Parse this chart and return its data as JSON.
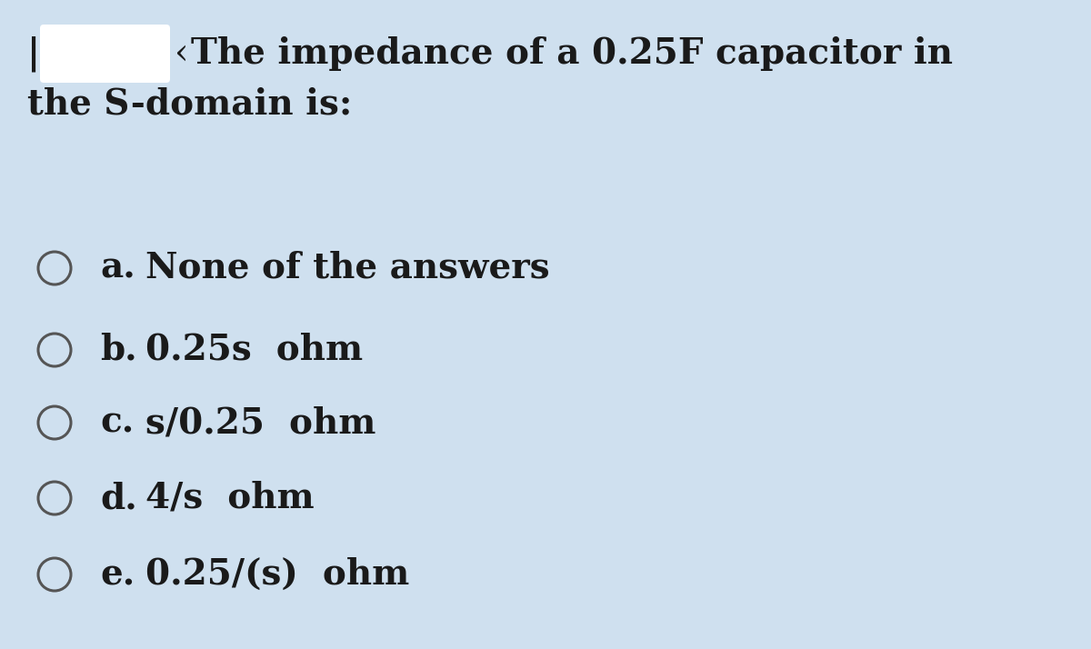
{
  "background_color": "#cfe0ef",
  "question_text_line1": "‹ The impedance of a 0.25F capacitor in",
  "question_text_line2": "the S-domain is:",
  "options": [
    {
      "letter": "a.",
      "text": "None of the answers"
    },
    {
      "letter": "b.",
      "text": "0.25s  ohm"
    },
    {
      "letter": "c.",
      "text": "s/0.25  ohm"
    },
    {
      "letter": "d.",
      "text": "4/s  ohm"
    },
    {
      "letter": "e.",
      "text": "0.25/(s)  ohm"
    }
  ],
  "circle_color": "#555555",
  "text_color": "#1a1a1a",
  "font_size_question": 28,
  "font_size_options": 28,
  "redacted_box_color": "#ffffff",
  "prefix_char": "|"
}
